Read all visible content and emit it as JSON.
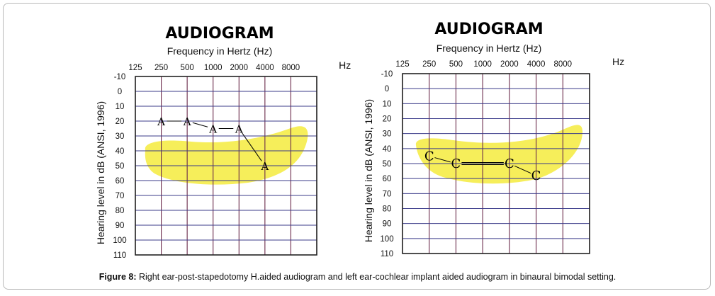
{
  "figure": {
    "caption_label": "Figure 8:",
    "caption_text": " Right ear-post-stapedotomy H.aided audiogram and left ear-cochlear implant aided audiogram in binaural bimodal setting."
  },
  "chart_data": [
    {
      "type": "line",
      "title": "AUDIOGRAM",
      "xlabel": "Frequency in Hertz (Hz)",
      "ylabel": "Hearing level in dB (ANSI, 1996)",
      "x_unit": "Hz",
      "x_ticks": [
        "125",
        "250",
        "500",
        "1000",
        "2000",
        "4000",
        "8000"
      ],
      "y_ticks": [
        -10,
        0,
        10,
        20,
        30,
        40,
        50,
        60,
        70,
        80,
        90,
        100,
        110
      ],
      "ylim": [
        -10,
        110
      ],
      "y_inverted": true,
      "x_scale": "log",
      "grid": true,
      "speech_banana_color": "#f6ee5a",
      "series": [
        {
          "symbol": "A",
          "color": "#000000",
          "points": [
            {
              "x": 250,
              "y": 20
            },
            {
              "x": 500,
              "y": 20
            },
            {
              "x": 1000,
              "y": 25
            },
            {
              "x": 2000,
              "y": 25
            },
            {
              "x": 4000,
              "y": 50
            }
          ]
        }
      ]
    },
    {
      "type": "line",
      "title": "AUDIOGRAM",
      "xlabel": "Frequency in Hertz (Hz)",
      "ylabel": "Hearing level in dB (ANSI, 1996)",
      "x_unit": "Hz",
      "x_ticks": [
        "125",
        "250",
        "500",
        "1000",
        "2000",
        "4000",
        "8000"
      ],
      "y_ticks": [
        -10,
        0,
        10,
        20,
        30,
        40,
        50,
        60,
        70,
        80,
        90,
        100,
        110
      ],
      "ylim": [
        -10,
        110
      ],
      "y_inverted": true,
      "x_scale": "log",
      "grid": true,
      "speech_banana_color": "#f6ee5a",
      "series": [
        {
          "symbol": "C",
          "color": "#000000",
          "points": [
            {
              "x": 250,
              "y": 45
            },
            {
              "x": 500,
              "y": 50
            },
            {
              "x": 2000,
              "y": 50
            },
            {
              "x": 4000,
              "y": 58
            }
          ]
        }
      ]
    }
  ]
}
